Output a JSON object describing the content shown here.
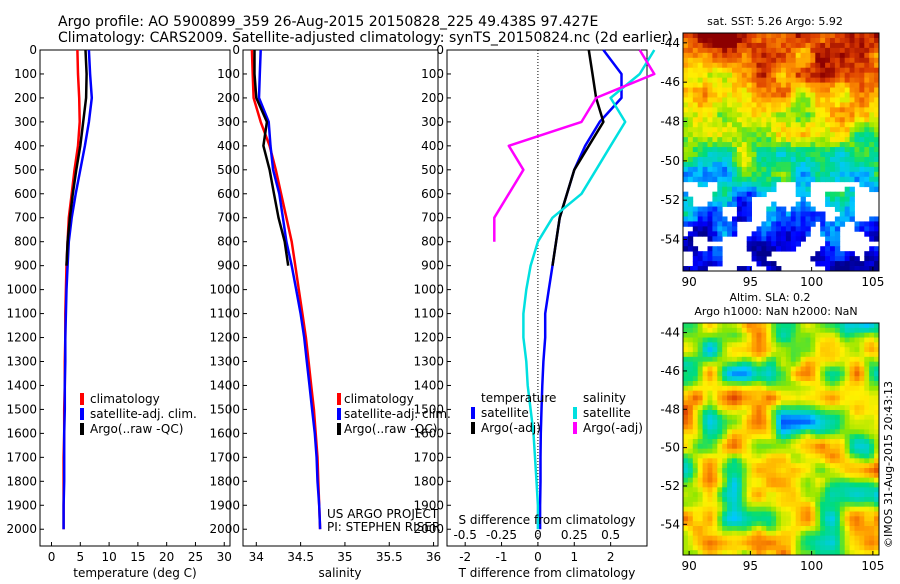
{
  "header": {
    "title_line1": "Argo profile: AO 5900899_359 26-Aug-2015 20150828_225 49.438S 97.427E",
    "title_line2": "Climatology: CARS2009. Satellite-adjusted climatology: synTS_20150824.nc (2d earlier)"
  },
  "colors": {
    "climatology": "#ff0000",
    "satellite_clim": "#0000ff",
    "argo": "#000000",
    "salinity_satellite": "#00e0e0",
    "salinity_argo": "#ff00ff"
  },
  "depth_ticks": [
    "0",
    "100",
    "200",
    "300",
    "400",
    "500",
    "600",
    "700",
    "800",
    "900",
    "1000",
    "1100",
    "1200",
    "1300",
    "1400",
    "1500",
    "1600",
    "1700",
    "1800",
    "1900",
    "2000"
  ],
  "panels": {
    "temperature": {
      "xlabel": "temperature (deg C)",
      "xticks": [
        "0",
        "5",
        "10",
        "15",
        "20",
        "25",
        "30"
      ],
      "legend": [
        "climatology",
        "satellite-adj. clim.",
        "Argo(..raw -QC)"
      ]
    },
    "salinity": {
      "xlabel": "salinity",
      "xticks": [
        "34",
        "34.5",
        "35",
        "35.5",
        "36"
      ],
      "legend": [
        "climatology",
        "satellite-adj. clim.",
        "Argo(..raw -QC)"
      ],
      "credit_line1": "US ARGO PROJECT",
      "credit_line2": "PI: STEPHEN RISER"
    },
    "difference": {
      "xlabel_bottom": "T difference from climatology",
      "xlabel_top": "S difference from climatology",
      "xticks_t": [
        "-2",
        "-1",
        "0",
        "1",
        "2"
      ],
      "xticks_s": [
        "-0.5",
        "-0.25",
        "0",
        "0.25",
        "0.5"
      ],
      "legend_temp_title": "temperature",
      "legend_sal_title": "salinity",
      "legend_temp": [
        "satellite",
        "Argo(-adj)"
      ],
      "legend_sal": [
        "satellite",
        "Argo(-adj)"
      ]
    }
  },
  "maps": {
    "sst": {
      "title": "sat. SST: 5.26  Argo: 5.92",
      "yticks": [
        "-44",
        "-46",
        "-48",
        "-50",
        "-52",
        "-54"
      ],
      "xticks": [
        "90",
        "95",
        "100",
        "105"
      ]
    },
    "sla": {
      "title_line1": "Altim. SLA: 0.2",
      "title_line2": "Argo h1000: NaN h2000: NaN",
      "yticks": [
        "-44",
        "-46",
        "-48",
        "-50",
        "-52",
        "-54"
      ],
      "xticks": [
        "90",
        "95",
        "100",
        "105"
      ],
      "stamp": "©IMOS 31-Aug-2015 20:43:13"
    }
  },
  "chart_data": [
    {
      "type": "line",
      "panel": "temperature",
      "xlabel": "temperature (deg C)",
      "ylabel": "",
      "xlim": [
        -2,
        31
      ],
      "ylim": [
        2070,
        0
      ],
      "series": [
        {
          "name": "climatology",
          "x": [
            4.5,
            4.6,
            4.8,
            4.9,
            4.6,
            4.0,
            3.5,
            3.0,
            2.8,
            2.6,
            2.5,
            2.4,
            2.4,
            2.3,
            2.3,
            2.2,
            2.2,
            2.1,
            2.1,
            2.1,
            2.1
          ],
          "y": [
            0,
            100,
            200,
            300,
            400,
            500,
            600,
            700,
            800,
            900,
            1000,
            1100,
            1200,
            1300,
            1400,
            1500,
            1600,
            1700,
            1800,
            1900,
            2000
          ]
        },
        {
          "name": "satellite-adj. clim.",
          "x": [
            6.5,
            6.7,
            7.0,
            6.5,
            5.8,
            5.0,
            4.2,
            3.5,
            3.0,
            2.8,
            2.6,
            2.5,
            2.4,
            2.4,
            2.3,
            2.3,
            2.2,
            2.2,
            2.2,
            2.1,
            2.1
          ],
          "y": [
            0,
            100,
            200,
            300,
            400,
            500,
            600,
            700,
            800,
            900,
            1000,
            1100,
            1200,
            1300,
            1400,
            1500,
            1600,
            1700,
            1800,
            1900,
            2000
          ]
        },
        {
          "name": "Argo(..raw -QC)",
          "x": [
            5.9,
            6.1,
            6.0,
            5.5,
            5.0,
            4.3,
            3.7,
            3.2,
            2.8,
            2.6
          ],
          "y": [
            0,
            100,
            200,
            300,
            400,
            500,
            600,
            700,
            800,
            900
          ]
        }
      ]
    },
    {
      "type": "line",
      "panel": "salinity",
      "xlabel": "salinity",
      "ylabel": "",
      "xlim": [
        33.85,
        36.05
      ],
      "ylim": [
        2070,
        0
      ],
      "series": [
        {
          "name": "climatology",
          "x": [
            33.95,
            33.96,
            33.97,
            34.05,
            34.15,
            34.22,
            34.28,
            34.34,
            34.4,
            34.44,
            34.48,
            34.52,
            34.56,
            34.59,
            34.62,
            34.65,
            34.67,
            34.69,
            34.7,
            34.71,
            34.72
          ],
          "y": [
            0,
            100,
            200,
            300,
            400,
            500,
            600,
            700,
            800,
            900,
            1000,
            1100,
            1200,
            1300,
            1400,
            1500,
            1600,
            1700,
            1800,
            1900,
            2000
          ]
        },
        {
          "name": "satellite-adj. clim.",
          "x": [
            34.05,
            34.04,
            34.03,
            34.14,
            34.16,
            34.19,
            34.26,
            34.3,
            34.34,
            34.4,
            34.45,
            34.5,
            34.54,
            34.57,
            34.6,
            34.63,
            34.66,
            34.68,
            34.69,
            34.71,
            34.72
          ],
          "y": [
            0,
            100,
            200,
            300,
            400,
            500,
            600,
            700,
            800,
            900,
            1000,
            1100,
            1200,
            1300,
            1400,
            1500,
            1600,
            1700,
            1800,
            1900,
            2000
          ]
        },
        {
          "name": "Argo(..raw -QC)",
          "x": [
            33.98,
            33.98,
            34.0,
            34.12,
            34.08,
            34.15,
            34.2,
            34.25,
            34.32,
            34.36
          ],
          "y": [
            0,
            100,
            200,
            300,
            400,
            500,
            600,
            700,
            800,
            900
          ]
        }
      ]
    },
    {
      "type": "line",
      "panel": "difference",
      "xlabel": "T difference from climatology",
      "ylabel": "",
      "xlim": [
        -2.5,
        3.0
      ],
      "ylim": [
        2070,
        0
      ],
      "series": [
        {
          "name": "temperature satellite",
          "x": [
            1.8,
            2.3,
            2.3,
            1.7,
            1.3,
            1.0,
            0.8,
            0.6,
            0.5,
            0.4,
            0.3,
            0.2,
            0.2,
            0.15,
            0.12,
            0.1,
            0.08,
            0.07,
            0.07,
            0.06,
            0.06
          ],
          "y": [
            0,
            100,
            200,
            300,
            400,
            500,
            600,
            700,
            800,
            900,
            1000,
            1100,
            1200,
            1300,
            1400,
            1500,
            1600,
            1700,
            1800,
            1900,
            2000
          ]
        },
        {
          "name": "temperature Argo(-adj)",
          "x": [
            1.4,
            1.5,
            1.6,
            1.8,
            1.4,
            1.0,
            0.8,
            0.6,
            0.5,
            0.4
          ],
          "y": [
            0,
            100,
            200,
            300,
            400,
            500,
            600,
            700,
            800,
            900
          ]
        },
        {
          "name": "salinity satellite",
          "x": [
            0.8,
            0.7,
            0.5,
            0.6,
            0.5,
            0.4,
            0.3,
            0.1,
            0.0,
            -0.05,
            -0.08,
            -0.1,
            -0.1,
            -0.08,
            -0.07,
            -0.05,
            -0.03,
            -0.02,
            -0.01,
            0.0,
            0.0
          ],
          "y": [
            0,
            100,
            200,
            300,
            400,
            500,
            600,
            700,
            800,
            900,
            1000,
            1100,
            1200,
            1300,
            1400,
            1500,
            1600,
            1700,
            1800,
            1900,
            2000
          ]
        },
        {
          "name": "salinity Argo(-adj)",
          "x": [
            0.7,
            0.8,
            0.4,
            0.3,
            -0.2,
            -0.1,
            -0.2,
            -0.3,
            -0.3
          ],
          "y": [
            0,
            100,
            200,
            300,
            400,
            500,
            600,
            700,
            800
          ]
        }
      ]
    },
    {
      "type": "heatmap",
      "panel": "sst-map",
      "title": "sat. SST: 5.26  Argo: 5.92",
      "xlim": [
        89.5,
        105.5
      ],
      "ylim": [
        -55.6,
        -43.5
      ]
    },
    {
      "type": "heatmap",
      "panel": "sla-map",
      "title": "Altim. SLA: 0.2",
      "xlim": [
        89.5,
        105.5
      ],
      "ylim": [
        -55.6,
        -43.5
      ]
    }
  ]
}
